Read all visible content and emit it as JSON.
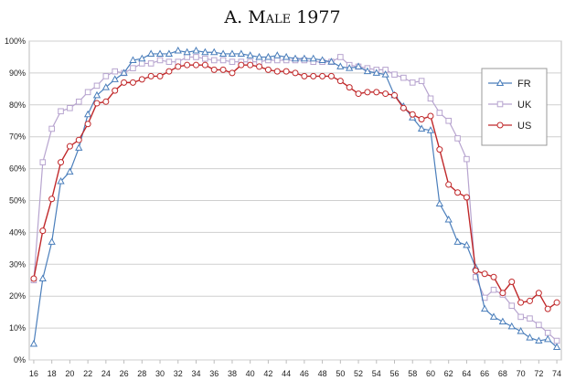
{
  "chart_data": {
    "type": "line",
    "title": "A. Male 1977",
    "xlabel": "",
    "ylabel": "",
    "x": [
      16,
      17,
      18,
      19,
      20,
      21,
      22,
      23,
      24,
      25,
      26,
      27,
      28,
      29,
      30,
      31,
      32,
      33,
      34,
      35,
      36,
      37,
      38,
      39,
      40,
      41,
      42,
      43,
      44,
      45,
      46,
      47,
      48,
      49,
      50,
      51,
      52,
      53,
      54,
      55,
      56,
      57,
      58,
      59,
      60,
      61,
      62,
      63,
      64,
      65,
      66,
      67,
      68,
      69,
      70,
      71,
      72,
      73,
      74
    ],
    "xticks": [
      "16",
      "18",
      "20",
      "22",
      "24",
      "26",
      "28",
      "30",
      "32",
      "34",
      "36",
      "38",
      "40",
      "42",
      "44",
      "46",
      "48",
      "50",
      "52",
      "54",
      "56",
      "58",
      "60",
      "62",
      "64",
      "66",
      "68",
      "70",
      "72",
      "74"
    ],
    "yticks": [
      "0%",
      "10%",
      "20%",
      "30%",
      "40%",
      "50%",
      "60%",
      "70%",
      "80%",
      "90%",
      "100%"
    ],
    "ylim": [
      0,
      100
    ],
    "xlim": [
      15.5,
      74.5
    ],
    "grid": "horizontal",
    "legend_position": "right",
    "series": [
      {
        "name": "FR",
        "color": "#4a7ebb",
        "marker": "triangle",
        "values": [
          5,
          25.5,
          37,
          56,
          59,
          66.5,
          77,
          83,
          85.5,
          88,
          90,
          94,
          94.5,
          96,
          96,
          96,
          97,
          96.5,
          97,
          96.5,
          96.5,
          96,
          96,
          96,
          95.5,
          95,
          95,
          95.5,
          95,
          94.5,
          94.5,
          94.5,
          94,
          93.5,
          92,
          91.5,
          92,
          90.5,
          90,
          89.5,
          83,
          79.5,
          76,
          72.5,
          72,
          49,
          44,
          37,
          36,
          29,
          16,
          13.5,
          12,
          10.5,
          9,
          7,
          6,
          6.5,
          4
        ]
      },
      {
        "name": "UK",
        "color": "#b7a4cf",
        "marker": "square",
        "values": [
          25,
          62,
          72.5,
          78,
          79,
          81,
          84,
          86,
          89,
          90.5,
          90,
          91.5,
          93,
          93,
          94,
          93.5,
          93.5,
          95,
          95,
          94.5,
          94,
          94,
          93.5,
          93.5,
          93.5,
          93.5,
          94,
          94,
          94,
          94,
          94,
          93.5,
          93.5,
          93.5,
          95,
          92.5,
          92,
          91.5,
          91,
          91,
          89.5,
          88.5,
          87,
          87.5,
          82,
          77.5,
          75,
          69.5,
          63,
          26,
          19.5,
          22,
          20.5,
          17,
          13.5,
          13,
          11,
          8.5,
          6
        ]
      },
      {
        "name": "US",
        "color": "#c0282a",
        "marker": "circle",
        "values": [
          25.5,
          40.5,
          50.5,
          62,
          67,
          69,
          74,
          80.5,
          81,
          84.5,
          87,
          87,
          88,
          89,
          89,
          90.5,
          92,
          92.5,
          92.5,
          92.5,
          91,
          91,
          90,
          92.5,
          92.5,
          92,
          91,
          90.5,
          90.5,
          90,
          89,
          89,
          89,
          89,
          87.5,
          85.5,
          83.5,
          84,
          84,
          83.5,
          83,
          79,
          77,
          75.5,
          76.5,
          66,
          55,
          52.5,
          51,
          28,
          27,
          26,
          21,
          24.5,
          18,
          18.5,
          21,
          16,
          18
        ]
      }
    ]
  }
}
